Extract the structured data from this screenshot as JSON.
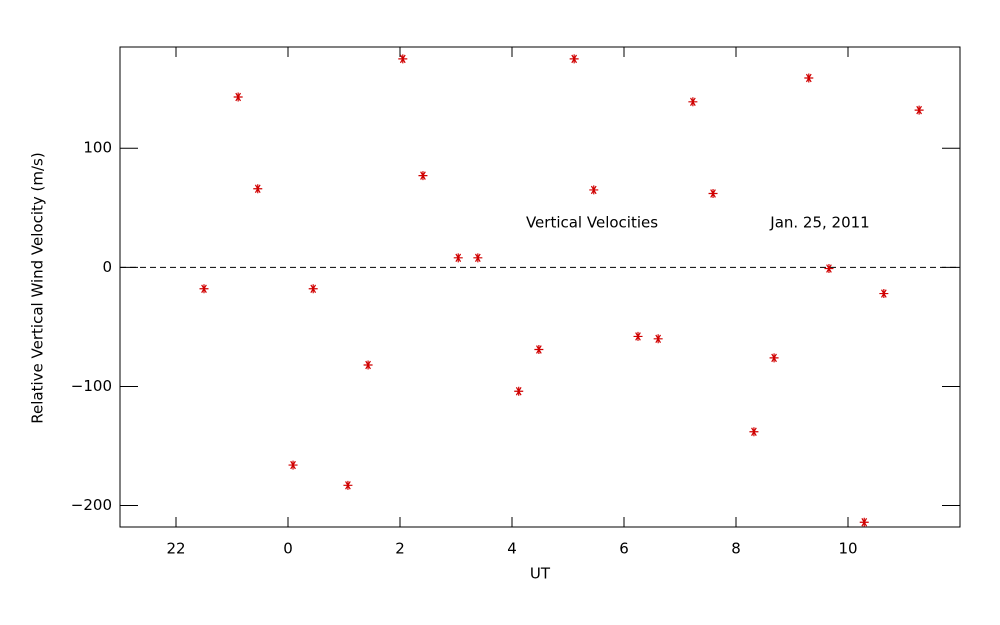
{
  "chart_data": {
    "type": "scatter",
    "xlabel": "UT",
    "ylabel": "Relative Vertical Wind Velocity (m/s)",
    "annotations": [
      "Vertical Velocities",
      "Jan. 25, 2011"
    ],
    "color": "#d00000",
    "marker": "asterisk",
    "hline": 0,
    "xlim": [
      -3,
      12
    ],
    "ylim": [
      -218,
      185
    ],
    "xticks": [
      {
        "value": -2,
        "label": "22"
      },
      0,
      2,
      4,
      6,
      8,
      10
    ],
    "yticks": [
      {
        "value": -200,
        "label": "−200"
      },
      {
        "value": -100,
        "label": "−100"
      },
      0,
      100
    ],
    "x": [
      -1.5,
      -0.89,
      -0.54,
      0.09,
      0.45,
      1.07,
      1.43,
      2.05,
      2.41,
      3.04,
      3.39,
      4.12,
      4.48,
      5.11,
      5.46,
      6.25,
      6.61,
      7.23,
      7.59,
      8.32,
      8.68,
      9.3,
      9.66,
      10.29,
      10.64,
      11.27
    ],
    "values": [
      -18,
      143,
      66,
      -166,
      -18,
      -183,
      -82,
      175,
      77,
      8,
      8,
      -104,
      -69,
      175,
      65,
      -58,
      -60,
      139,
      62,
      -138,
      -76,
      159,
      -1,
      -214,
      -22,
      132
    ]
  }
}
